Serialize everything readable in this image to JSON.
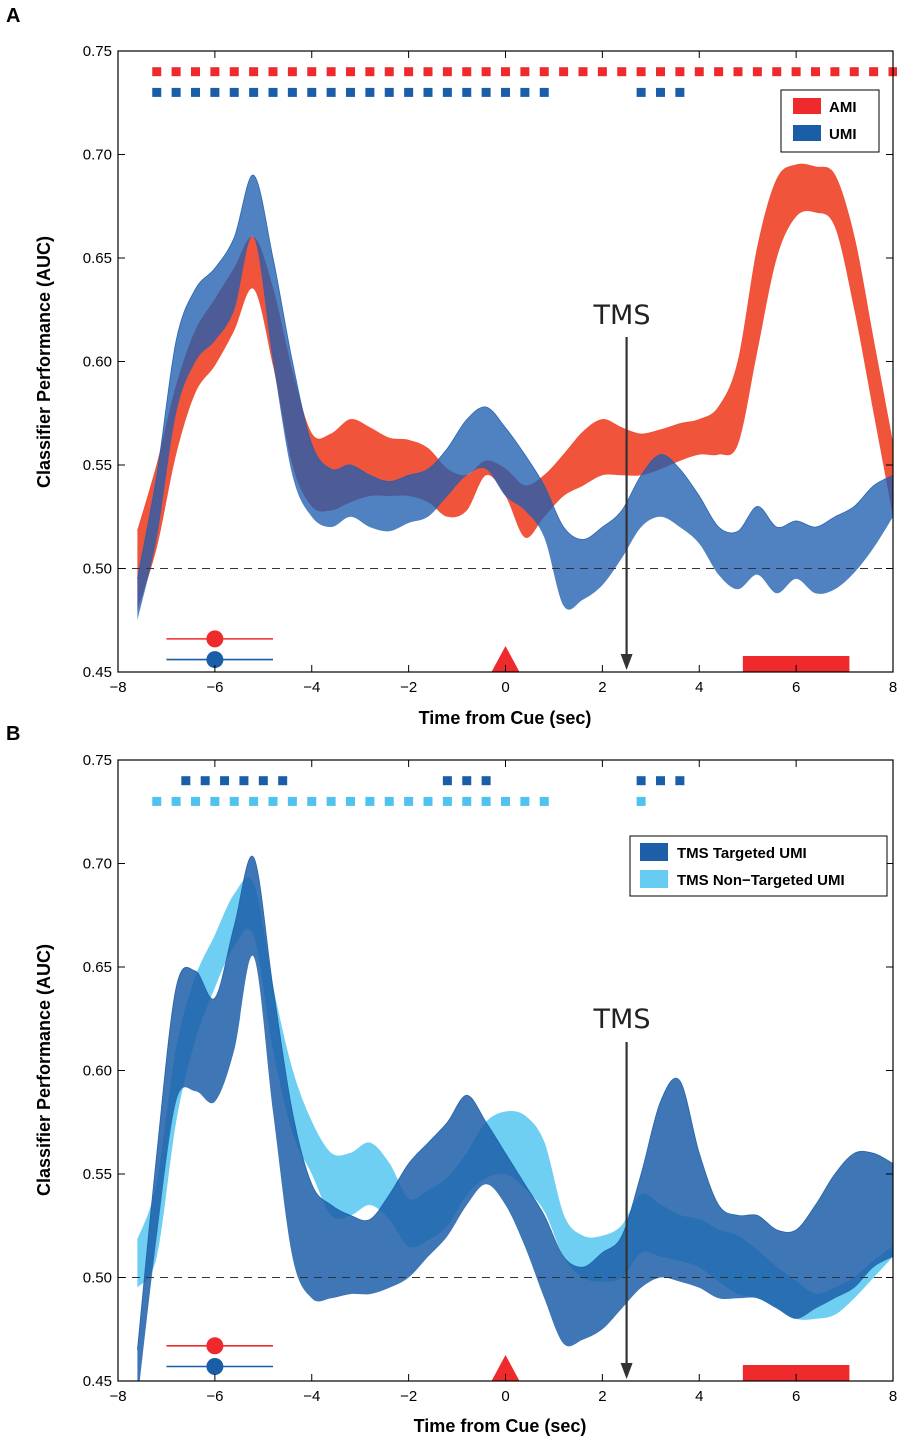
{
  "colors": {
    "red_band": "#ef4b30",
    "blue_band": "#1f5fb0",
    "overlap_ab": "#4a4f8e",
    "red_marker": "#ee2a2c",
    "blue_marker": "#1a5ea8",
    "dark_blue_band": "#1d5ea8",
    "light_blue_band": "#66ccf2",
    "light_blue_marker": "#4fc3ef",
    "arrow": "#333333"
  },
  "chart_data": [
    {
      "panel_label": "A",
      "type": "area",
      "xlabel": "Time from Cue (sec)",
      "ylabel": "Classifier Performance (AUC)",
      "xlim": [
        -8,
        8
      ],
      "ylim": [
        0.45,
        0.75
      ],
      "x_ticks": [
        -8,
        -6,
        -4,
        -2,
        0,
        2,
        4,
        6,
        8
      ],
      "x_tick_labels": [
        "−8",
        "−6",
        "−4",
        "−2",
        "0",
        "2",
        "4",
        "6",
        "8"
      ],
      "y_ticks": [
        0.45,
        0.5,
        0.55,
        0.6,
        0.65,
        0.7,
        0.75
      ],
      "y_tick_labels": [
        "0.45",
        "0.50",
        "0.55",
        "0.60",
        "0.65",
        "0.70",
        "0.75"
      ],
      "chance_level": 0.5,
      "legend": {
        "position": "top-right",
        "entries": [
          {
            "name": "AMI",
            "color": "#ee2a2c"
          },
          {
            "name": "UMI",
            "color": "#1a5ea8"
          }
        ]
      },
      "annotation": {
        "text": "TMS",
        "x": 2.5
      },
      "series": [
        {
          "name": "AMI",
          "color": "#ef4b30",
          "x": [
            -7.6,
            -7.2,
            -6.8,
            -6.4,
            -6.0,
            -5.6,
            -5.2,
            -4.8,
            -4.4,
            -4.0,
            -3.6,
            -3.2,
            -2.8,
            -2.4,
            -2.0,
            -1.6,
            -1.2,
            -0.8,
            -0.4,
            0.0,
            0.4,
            0.8,
            1.2,
            1.6,
            2.0,
            2.4,
            2.8,
            3.2,
            3.6,
            4.0,
            4.4,
            4.8,
            5.2,
            5.6,
            6.0,
            6.4,
            6.8,
            7.2,
            7.6,
            8.0
          ],
          "upper": [
            0.518,
            0.55,
            0.588,
            0.615,
            0.63,
            0.645,
            0.66,
            0.635,
            0.595,
            0.565,
            0.565,
            0.572,
            0.568,
            0.563,
            0.562,
            0.558,
            0.548,
            0.545,
            0.552,
            0.548,
            0.54,
            0.545,
            0.555,
            0.566,
            0.572,
            0.568,
            0.565,
            0.567,
            0.57,
            0.572,
            0.578,
            0.6,
            0.655,
            0.688,
            0.695,
            0.694,
            0.69,
            0.66,
            0.61,
            0.56
          ],
          "lower": [
            0.48,
            0.51,
            0.555,
            0.585,
            0.598,
            0.615,
            0.635,
            0.598,
            0.55,
            0.53,
            0.528,
            0.532,
            0.535,
            0.535,
            0.535,
            0.532,
            0.525,
            0.528,
            0.545,
            0.535,
            0.515,
            0.525,
            0.535,
            0.54,
            0.545,
            0.545,
            0.545,
            0.548,
            0.552,
            0.555,
            0.555,
            0.56,
            0.605,
            0.65,
            0.67,
            0.672,
            0.665,
            0.625,
            0.575,
            0.525
          ]
        },
        {
          "name": "UMI",
          "color": "#1f5fb0",
          "x": [
            -7.6,
            -7.2,
            -6.8,
            -6.4,
            -6.0,
            -5.6,
            -5.2,
            -4.8,
            -4.4,
            -4.0,
            -3.6,
            -3.2,
            -2.8,
            -2.4,
            -2.0,
            -1.6,
            -1.2,
            -0.8,
            -0.4,
            0.0,
            0.4,
            0.8,
            1.2,
            1.6,
            2.0,
            2.4,
            2.8,
            3.2,
            3.6,
            4.0,
            4.4,
            4.8,
            5.2,
            5.6,
            6.0,
            6.4,
            6.8,
            7.2,
            7.6,
            8.0
          ],
          "upper": [
            0.495,
            0.545,
            0.61,
            0.635,
            0.645,
            0.66,
            0.69,
            0.65,
            0.6,
            0.56,
            0.548,
            0.55,
            0.545,
            0.542,
            0.545,
            0.548,
            0.558,
            0.572,
            0.578,
            0.568,
            0.555,
            0.54,
            0.52,
            0.514,
            0.52,
            0.528,
            0.545,
            0.555,
            0.548,
            0.535,
            0.52,
            0.518,
            0.53,
            0.52,
            0.523,
            0.52,
            0.525,
            0.53,
            0.54,
            0.545
          ],
          "lower": [
            0.475,
            0.515,
            0.575,
            0.6,
            0.61,
            0.625,
            0.66,
            0.6,
            0.545,
            0.525,
            0.52,
            0.525,
            0.52,
            0.518,
            0.522,
            0.525,
            0.535,
            0.545,
            0.548,
            0.535,
            0.528,
            0.515,
            0.482,
            0.485,
            0.492,
            0.505,
            0.52,
            0.525,
            0.52,
            0.512,
            0.497,
            0.49,
            0.497,
            0.488,
            0.495,
            0.488,
            0.49,
            0.498,
            0.51,
            0.525
          ]
        }
      ],
      "significance_markers": [
        {
          "series": "AMI",
          "y": 0.74,
          "x": [
            -7.2,
            -6.8,
            -6.4,
            -6.0,
            -5.6,
            -5.2,
            -4.8,
            -4.4,
            -4.0,
            -3.6,
            -3.2,
            -2.8,
            -2.4,
            -2.0,
            -1.6,
            -1.2,
            -0.8,
            -0.4,
            0.0,
            0.4,
            0.8,
            1.2,
            1.6,
            2.0,
            2.4,
            2.8,
            3.2,
            3.6,
            4.0,
            4.4,
            4.8,
            5.2,
            5.6,
            6.0,
            6.4,
            6.8,
            7.2,
            7.6,
            8.0
          ]
        },
        {
          "series": "UMI",
          "y": 0.73,
          "x": [
            -7.2,
            -6.8,
            -6.4,
            -6.0,
            -5.6,
            -5.2,
            -4.8,
            -4.4,
            -4.0,
            -3.6,
            -3.2,
            -2.8,
            -2.4,
            -2.0,
            -1.6,
            -1.2,
            -0.8,
            -0.4,
            0.0,
            0.4,
            0.8,
            2.8,
            3.2,
            3.6
          ]
        }
      ],
      "stimulus_markers": {
        "sample": {
          "x": -6.0,
          "xmin": -7.0,
          "xmax": -4.8,
          "y_red": 0.466,
          "y_blue": 0.456
        },
        "cue": {
          "x": 0.0
        },
        "probe": {
          "xmin": 4.9,
          "xmax": 7.1
        }
      }
    },
    {
      "panel_label": "B",
      "type": "area",
      "xlabel": "Time from Cue (sec)",
      "ylabel": "Classifier Performance (AUC)",
      "xlim": [
        -8,
        8
      ],
      "ylim": [
        0.45,
        0.75
      ],
      "x_ticks": [
        -8,
        -6,
        -4,
        -2,
        0,
        2,
        4,
        6,
        8
      ],
      "x_tick_labels": [
        "−8",
        "−6",
        "−4",
        "−2",
        "0",
        "2",
        "4",
        "6",
        "8"
      ],
      "y_ticks": [
        0.45,
        0.5,
        0.55,
        0.6,
        0.65,
        0.7,
        0.75
      ],
      "y_tick_labels": [
        "0.45",
        "0.50",
        "0.55",
        "0.60",
        "0.65",
        "0.70",
        "0.75"
      ],
      "chance_level": 0.5,
      "legend": {
        "position": "top-right",
        "entries": [
          {
            "name": "TMS Targeted UMI",
            "color": "#1d5ea8"
          },
          {
            "name": "TMS Non−Targeted UMI",
            "color": "#66ccf2"
          }
        ]
      },
      "annotation": {
        "text": "TMS",
        "x": 2.5
      },
      "series": [
        {
          "name": "TMS Non−Targeted UMI",
          "color": "#66ccf2",
          "x": [
            -7.6,
            -7.2,
            -6.8,
            -6.4,
            -6.0,
            -5.6,
            -5.2,
            -4.8,
            -4.4,
            -4.0,
            -3.6,
            -3.2,
            -2.8,
            -2.4,
            -2.0,
            -1.6,
            -1.2,
            -0.8,
            -0.4,
            0.0,
            0.4,
            0.8,
            1.2,
            1.6,
            2.0,
            2.4,
            2.8,
            3.2,
            3.6,
            4.0,
            4.4,
            4.8,
            5.2,
            5.6,
            6.0,
            6.4,
            6.8,
            7.2,
            7.6,
            8.0
          ],
          "upper": [
            0.518,
            0.545,
            0.61,
            0.645,
            0.665,
            0.685,
            0.69,
            0.64,
            0.6,
            0.575,
            0.56,
            0.56,
            0.565,
            0.555,
            0.538,
            0.542,
            0.548,
            0.56,
            0.575,
            0.58,
            0.578,
            0.565,
            0.53,
            0.52,
            0.52,
            0.525,
            0.54,
            0.535,
            0.53,
            0.528,
            0.523,
            0.52,
            0.513,
            0.505,
            0.498,
            0.492,
            0.495,
            0.5,
            0.508,
            0.515
          ],
          "lower": [
            0.495,
            0.51,
            0.575,
            0.615,
            0.64,
            0.66,
            0.665,
            0.61,
            0.57,
            0.55,
            0.53,
            0.53,
            0.535,
            0.528,
            0.515,
            0.518,
            0.525,
            0.54,
            0.548,
            0.55,
            0.543,
            0.532,
            0.51,
            0.5,
            0.498,
            0.5,
            0.512,
            0.51,
            0.508,
            0.505,
            0.498,
            0.492,
            0.49,
            0.485,
            0.48,
            0.48,
            0.482,
            0.49,
            0.5,
            0.51
          ]
        },
        {
          "name": "TMS Targeted UMI",
          "color": "#1d5ea8",
          "x": [
            -7.6,
            -7.2,
            -6.8,
            -6.4,
            -6.0,
            -5.6,
            -5.2,
            -4.8,
            -4.4,
            -4.0,
            -3.6,
            -3.2,
            -2.8,
            -2.4,
            -2.0,
            -1.6,
            -1.2,
            -0.8,
            -0.4,
            0.0,
            0.4,
            0.8,
            1.2,
            1.6,
            2.0,
            2.4,
            2.8,
            3.2,
            3.6,
            4.0,
            4.4,
            4.8,
            5.2,
            5.6,
            6.0,
            6.4,
            6.8,
            7.2,
            7.6,
            8.0
          ],
          "upper": [
            0.465,
            0.56,
            0.64,
            0.648,
            0.635,
            0.67,
            0.703,
            0.64,
            0.58,
            0.545,
            0.535,
            0.53,
            0.528,
            0.54,
            0.555,
            0.565,
            0.575,
            0.588,
            0.575,
            0.56,
            0.545,
            0.53,
            0.51,
            0.505,
            0.512,
            0.52,
            0.55,
            0.585,
            0.595,
            0.56,
            0.535,
            0.53,
            0.53,
            0.523,
            0.523,
            0.535,
            0.55,
            0.56,
            0.56,
            0.555
          ],
          "lower": [
            0.44,
            0.52,
            0.585,
            0.59,
            0.585,
            0.61,
            0.655,
            0.58,
            0.51,
            0.49,
            0.49,
            0.492,
            0.492,
            0.495,
            0.5,
            0.51,
            0.52,
            0.535,
            0.545,
            0.535,
            0.515,
            0.49,
            0.468,
            0.47,
            0.475,
            0.485,
            0.495,
            0.5,
            0.498,
            0.495,
            0.49,
            0.49,
            0.49,
            0.485,
            0.48,
            0.485,
            0.49,
            0.495,
            0.505,
            0.51
          ]
        }
      ],
      "significance_markers": [
        {
          "series": "TMS Targeted UMI",
          "y": 0.74,
          "x": [
            -6.6,
            -6.2,
            -5.8,
            -5.4,
            -5.0,
            -4.6,
            -1.2,
            -0.8,
            -0.4,
            2.8,
            3.2,
            3.6
          ]
        },
        {
          "series": "TMS Non−Targeted UMI",
          "y": 0.73,
          "x": [
            -7.2,
            -6.8,
            -6.4,
            -6.0,
            -5.6,
            -5.2,
            -4.8,
            -4.4,
            -4.0,
            -3.6,
            -3.2,
            -2.8,
            -2.4,
            -2.0,
            -1.6,
            -1.2,
            -0.8,
            -0.4,
            0.0,
            0.4,
            0.8,
            2.8
          ]
        }
      ],
      "stimulus_markers": {
        "sample": {
          "x": -6.0,
          "xmin": -7.0,
          "xmax": -4.8,
          "y_red": 0.467,
          "y_blue": 0.457
        },
        "cue": {
          "x": 0.0
        },
        "probe": {
          "xmin": 4.9,
          "xmax": 7.1
        }
      }
    }
  ]
}
